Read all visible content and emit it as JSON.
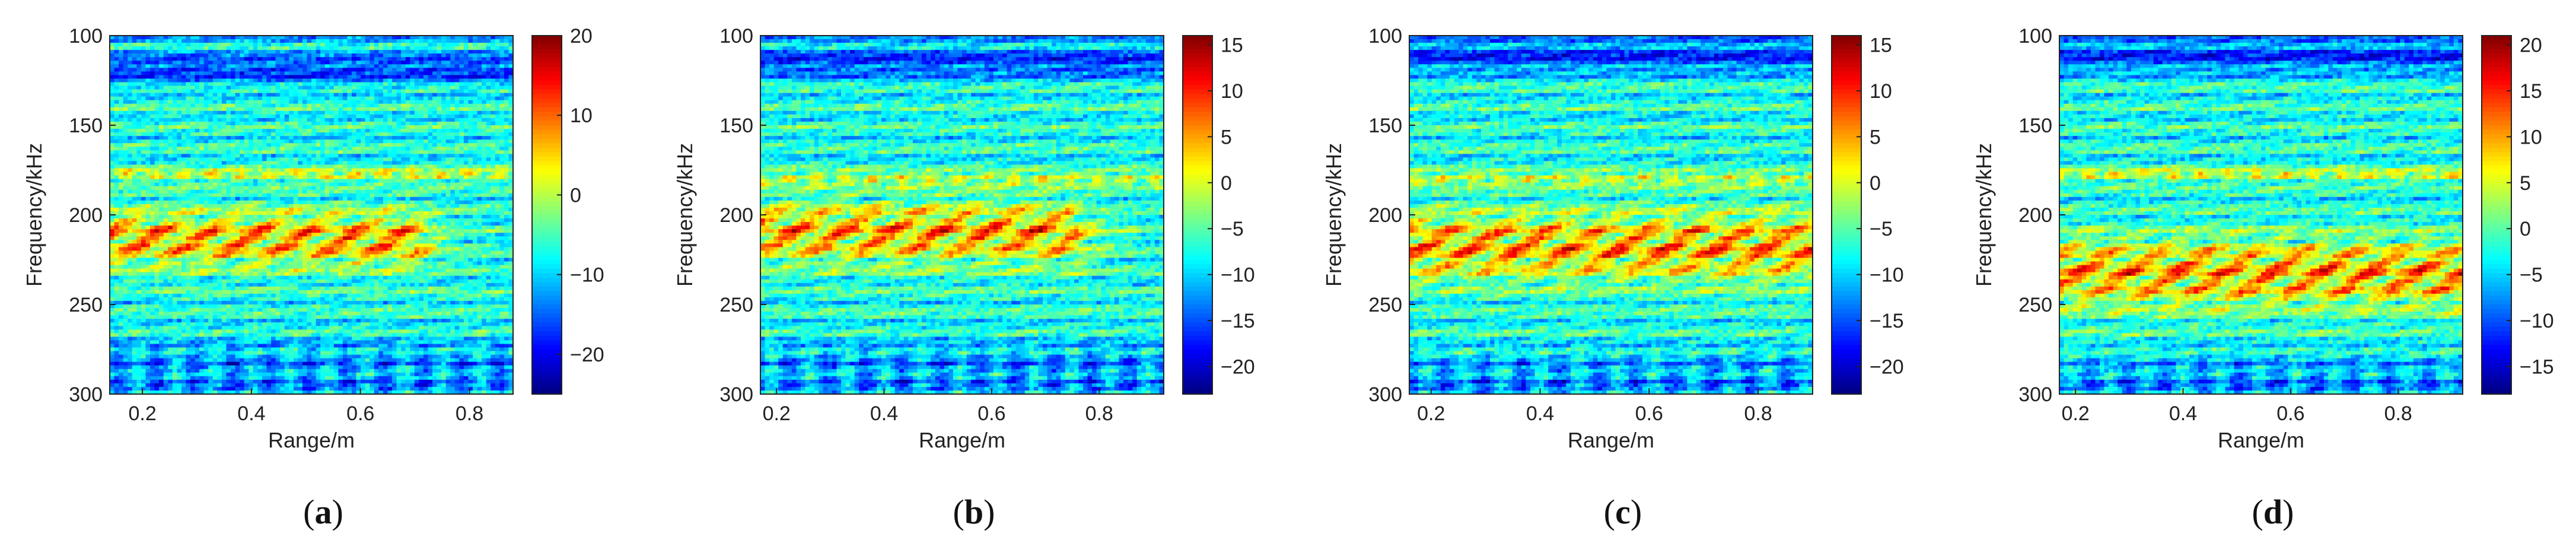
{
  "figure": {
    "panels": [
      {
        "caption": "(a)",
        "caption_letter": "a"
      },
      {
        "caption": "(b)",
        "caption_letter": "b"
      },
      {
        "caption": "(c)",
        "caption_letter": "c"
      },
      {
        "caption": "(d)",
        "caption_letter": "d"
      }
    ]
  },
  "chart_data": [
    {
      "type": "heatmap",
      "xlabel": "Range/m",
      "ylabel": "Frequency/kHz",
      "x_range": [
        0.14,
        0.88
      ],
      "x_ticks": [
        "0.2",
        "0.4",
        "0.6",
        "0.8"
      ],
      "x_tick_values": [
        0.2,
        0.4,
        0.6,
        0.8
      ],
      "y_range": [
        100,
        300
      ],
      "y_reversed": true,
      "y_ticks": [
        "100",
        "150",
        "200",
        "250",
        "300"
      ],
      "y_tick_values": [
        100,
        150,
        200,
        250,
        300
      ],
      "colormap": "jet",
      "clim": [
        -25,
        20
      ],
      "colorbar_ticks": [
        "20",
        "10",
        "0",
        "−10",
        "−20"
      ],
      "colorbar_tick_values": [
        20,
        10,
        0,
        -10,
        -20
      ],
      "features": {
        "hot_band_freq_khz": [
          195,
          232
        ],
        "hot_band_end_range_m": 0.7,
        "line_at_khz": 178,
        "cold_top_khz": 118,
        "cold_bottom_khz": 282
      }
    },
    {
      "type": "heatmap",
      "xlabel": "Range/m",
      "ylabel": "Frequency/kHz",
      "x_range": [
        0.17,
        0.92
      ],
      "x_ticks": [
        "0.2",
        "0.4",
        "0.6",
        "0.8"
      ],
      "x_tick_values": [
        0.2,
        0.4,
        0.6,
        0.8
      ],
      "y_range": [
        100,
        300
      ],
      "y_reversed": true,
      "y_ticks": [
        "100",
        "150",
        "200",
        "250",
        "300"
      ],
      "y_tick_values": [
        100,
        150,
        200,
        250,
        300
      ],
      "colormap": "jet",
      "clim": [
        -23,
        16
      ],
      "colorbar_ticks": [
        "15",
        "10",
        "5",
        "0",
        "−5",
        "−10",
        "−15",
        "−20"
      ],
      "colorbar_tick_values": [
        15,
        10,
        5,
        0,
        -5,
        -10,
        -15,
        -20
      ],
      "features": {
        "hot_band_freq_khz": [
          190,
          230
        ],
        "hot_band_end_range_m": 0.75,
        "line_at_khz": 180,
        "cold_top_khz": 115,
        "cold_bottom_khz": 282
      }
    },
    {
      "type": "heatmap",
      "xlabel": "Range/m",
      "ylabel": "Frequency/kHz",
      "x_range": [
        0.16,
        0.9
      ],
      "x_ticks": [
        "0.2",
        "0.4",
        "0.6",
        "0.8"
      ],
      "x_tick_values": [
        0.2,
        0.4,
        0.6,
        0.8
      ],
      "y_range": [
        100,
        300
      ],
      "y_reversed": true,
      "y_ticks": [
        "100",
        "150",
        "200",
        "250",
        "300"
      ],
      "y_tick_values": [
        100,
        150,
        200,
        250,
        300
      ],
      "colormap": "jet",
      "clim": [
        -23,
        16
      ],
      "colorbar_ticks": [
        "15",
        "10",
        "5",
        "0",
        "−5",
        "−10",
        "−15",
        "−20"
      ],
      "colorbar_tick_values": [
        15,
        10,
        5,
        0,
        -5,
        -10,
        -15,
        -20
      ],
      "features": {
        "hot_band_freq_khz": [
          195,
          240
        ],
        "hot_band_end_range_m": 0.92,
        "line_at_khz": 180,
        "cold_top_khz": 112,
        "cold_bottom_khz": 288
      }
    },
    {
      "type": "heatmap",
      "xlabel": "Range/m",
      "ylabel": "Frequency/kHz",
      "x_range": [
        0.17,
        0.92
      ],
      "x_ticks": [
        "0.2",
        "0.4",
        "0.6",
        "0.8"
      ],
      "x_tick_values": [
        0.2,
        0.4,
        0.6,
        0.8
      ],
      "y_range": [
        100,
        300
      ],
      "y_reversed": true,
      "y_ticks": [
        "100",
        "150",
        "200",
        "250",
        "300"
      ],
      "y_tick_values": [
        100,
        150,
        200,
        250,
        300
      ],
      "colormap": "jet",
      "clim": [
        -18,
        21
      ],
      "colorbar_ticks": [
        "20",
        "15",
        "10",
        "5",
        "0",
        "−5",
        "−10",
        "−15"
      ],
      "colorbar_tick_values": [
        20,
        15,
        10,
        5,
        0,
        -5,
        -10,
        -15
      ],
      "features": {
        "hot_band_freq_khz": [
          210,
          255
        ],
        "hot_band_end_range_m": 0.92,
        "line_at_khz": 178,
        "cold_top_khz": 112,
        "cold_bottom_khz": 290
      }
    }
  ]
}
